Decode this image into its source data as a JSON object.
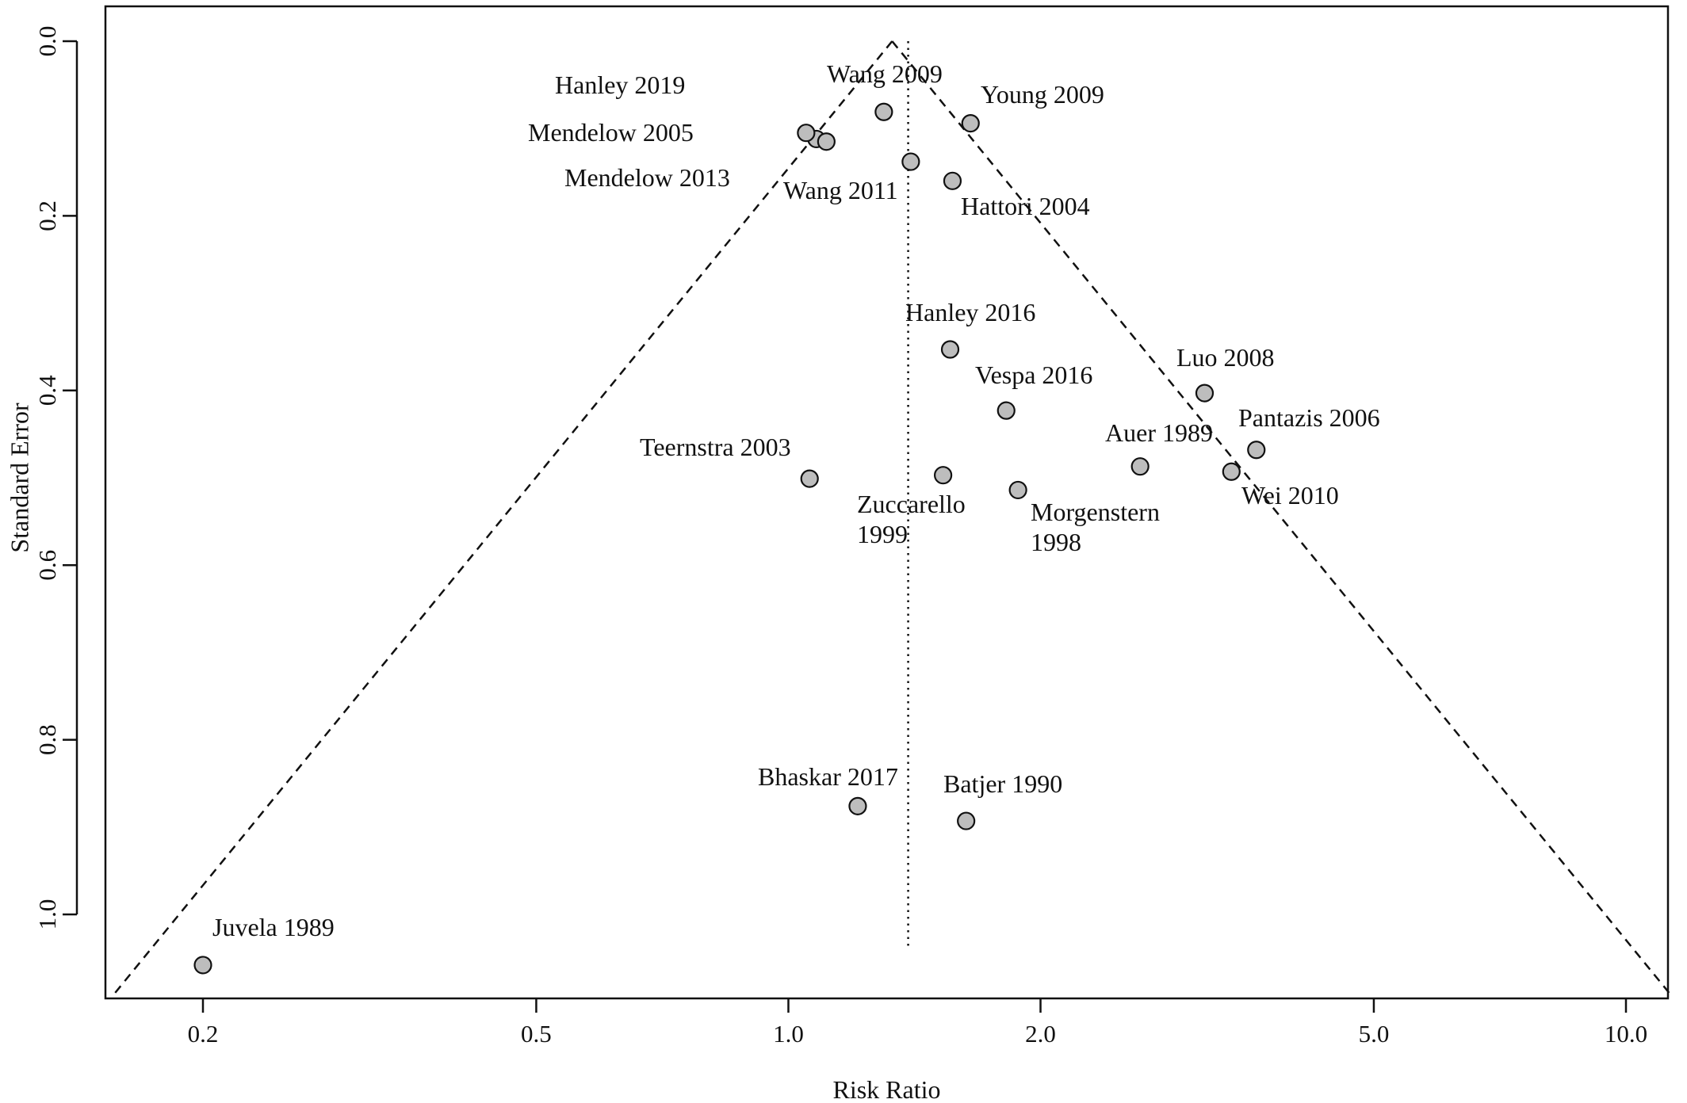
{
  "chart_data": {
    "type": "scatter",
    "subtype": "funnel-plot",
    "title": "",
    "xlabel": "Risk Ratio",
    "ylabel": "Standard Error",
    "x_scale": "log",
    "y_reversed": true,
    "xlim": [
      0.165,
      11.1
    ],
    "ylim": [
      0,
      1.09
    ],
    "x_ticks": [
      {
        "value": 0.2,
        "label": "0.2"
      },
      {
        "value": 0.5,
        "label": "0.5"
      },
      {
        "value": 1.0,
        "label": "1.0"
      },
      {
        "value": 2.0,
        "label": "2.0"
      },
      {
        "value": 5.0,
        "label": "5.0"
      },
      {
        "value": 10.0,
        "label": "10.0"
      }
    ],
    "y_ticks": [
      {
        "value": 0.0,
        "label": "0.0"
      },
      {
        "value": 0.2,
        "label": "0.2"
      },
      {
        "value": 0.4,
        "label": "0.4"
      },
      {
        "value": 0.6,
        "label": "0.6"
      },
      {
        "value": 0.8,
        "label": "0.8"
      },
      {
        "value": 1.0,
        "label": "1.0"
      }
    ],
    "pooled_estimate": 1.39,
    "funnel_apex": 1.33,
    "funnel_se_max": 1.09,
    "dotted_line_se_max": 1.04,
    "grid": false,
    "legend": "none",
    "point_color": "#bdbdbd",
    "points": [
      {
        "study": "Hanley 2019",
        "label_lines": [
          "Hanley 2019"
        ],
        "x": 1.08,
        "y": 0.112
      },
      {
        "study": "Mendelow 2005",
        "label_lines": [
          "Mendelow 2005"
        ],
        "x": 1.05,
        "y": 0.105
      },
      {
        "study": "Mendelow 2013",
        "label_lines": [
          "Mendelow 2013"
        ],
        "x": 1.11,
        "y": 0.115
      },
      {
        "study": "Wang 2009",
        "label_lines": [
          "Wang 2009"
        ],
        "x": 1.3,
        "y": 0.081
      },
      {
        "study": "Young 2009",
        "label_lines": [
          "Young 2009"
        ],
        "x": 1.65,
        "y": 0.094
      },
      {
        "study": "Wang 2011",
        "label_lines": [
          "Wang 2011"
        ],
        "x": 1.4,
        "y": 0.138
      },
      {
        "study": "Hattori 2004",
        "label_lines": [
          "Hattori 2004"
        ],
        "x": 1.57,
        "y": 0.16
      },
      {
        "study": "Hanley 2016",
        "label_lines": [
          "Hanley 2016"
        ],
        "x": 1.56,
        "y": 0.353
      },
      {
        "study": "Luo 2008",
        "label_lines": [
          "Luo 2008"
        ],
        "x": 3.14,
        "y": 0.403
      },
      {
        "study": "Vespa 2016",
        "label_lines": [
          "Vespa 2016"
        ],
        "x": 1.82,
        "y": 0.423
      },
      {
        "study": "Pantazis 2006",
        "label_lines": [
          "Pantazis 2006"
        ],
        "x": 3.62,
        "y": 0.468
      },
      {
        "study": "Auer 1989",
        "label_lines": [
          "Auer 1989"
        ],
        "x": 2.63,
        "y": 0.487
      },
      {
        "study": "Wei 2010",
        "label_lines": [
          "Wei 2010"
        ],
        "x": 3.38,
        "y": 0.493
      },
      {
        "study": "Teernstra 2003",
        "label_lines": [
          "Teernstra 2003"
        ],
        "x": 1.06,
        "y": 0.501
      },
      {
        "study": "Zuccarello 1999",
        "label_lines": [
          "Zuccarello",
          "1999"
        ],
        "x": 1.53,
        "y": 0.497
      },
      {
        "study": "Morgenstern 1998",
        "label_lines": [
          "Morgenstern",
          "1998"
        ],
        "x": 1.88,
        "y": 0.514
      },
      {
        "study": "Bhaskar 2017",
        "label_lines": [
          "Bhaskar 2017"
        ],
        "x": 1.21,
        "y": 0.876
      },
      {
        "study": "Batjer 1990",
        "label_lines": [
          "Batjer 1990"
        ],
        "x": 1.63,
        "y": 0.893
      },
      {
        "study": "Juvela 1989",
        "label_lines": [
          "Juvela 1989"
        ],
        "x": 0.2,
        "y": 1.058
      }
    ]
  }
}
